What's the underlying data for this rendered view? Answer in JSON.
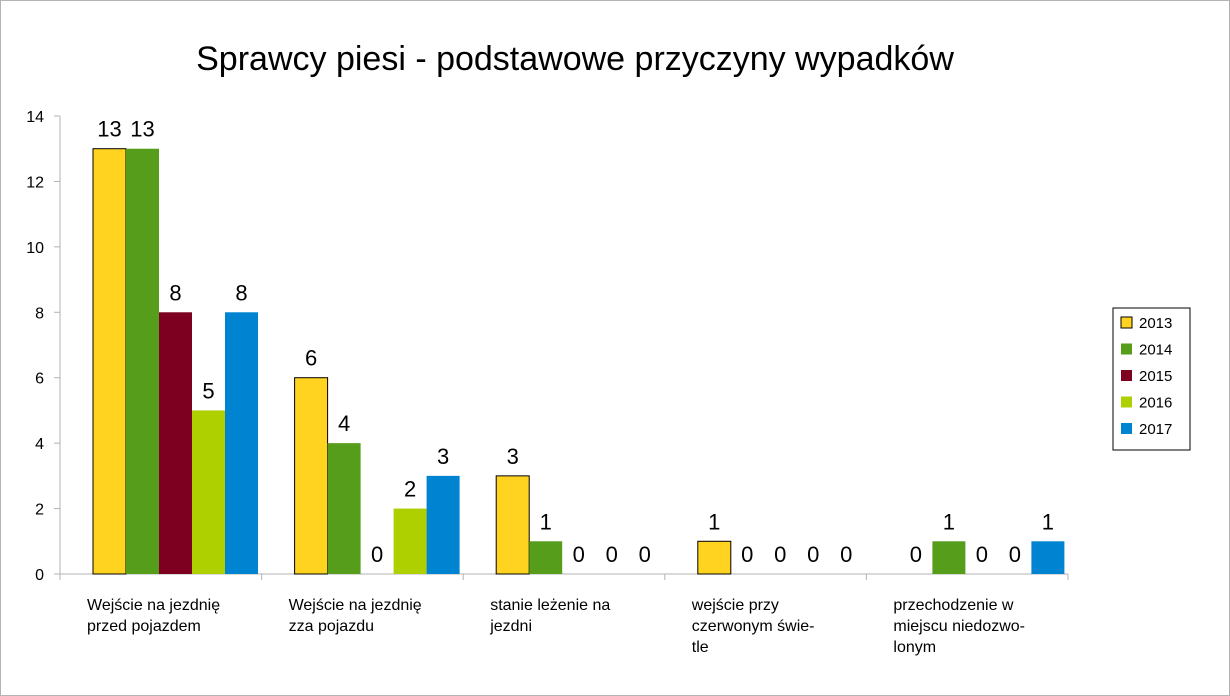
{
  "chart_data": {
    "type": "bar",
    "title": "Sprawcy piesi - podstawowe przyczyny wypadków",
    "categories": [
      [
        "Wejście na jezdnię",
        "przed pojazdem"
      ],
      [
        "Wejście na jezdnię",
        "zza pojazdu"
      ],
      [
        "stanie leżenie na",
        "jezdni"
      ],
      [
        "wejście przy",
        "czerwonym świe-",
        "tle"
      ],
      [
        "przechodzenie w",
        "miejscu niedozwo-",
        "lonym"
      ]
    ],
    "series": [
      {
        "name": "2013",
        "color": "#ffd320",
        "values": [
          13,
          6,
          3,
          1,
          0
        ]
      },
      {
        "name": "2014",
        "color": "#579d1c",
        "values": [
          13,
          4,
          1,
          0,
          1
        ]
      },
      {
        "name": "2015",
        "color": "#7e0021",
        "values": [
          8,
          0,
          0,
          0,
          0
        ]
      },
      {
        "name": "2016",
        "color": "#aecf00",
        "values": [
          5,
          2,
          0,
          0,
          0
        ]
      },
      {
        "name": "2017",
        "color": "#0084d1",
        "values": [
          8,
          3,
          0,
          0,
          1
        ]
      }
    ],
    "ylim": [
      0,
      14
    ],
    "yticks": [
      0,
      2,
      4,
      6,
      8,
      10,
      12,
      14
    ],
    "legend": "right"
  }
}
